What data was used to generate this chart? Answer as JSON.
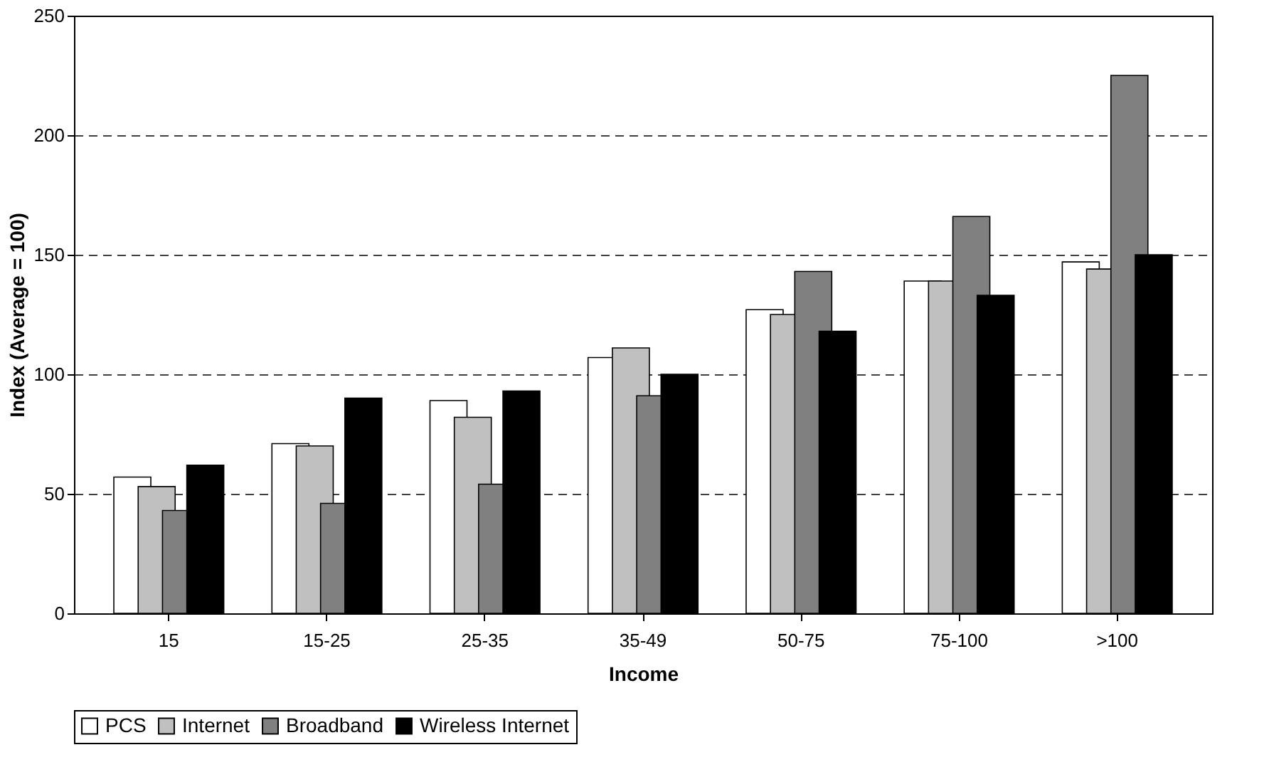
{
  "chart_data": {
    "type": "bar",
    "xlabel": "Income",
    "ylabel": "Index (Average = 100)",
    "categories": [
      "15",
      "15-25",
      "25-35",
      "35-49",
      "50-75",
      "75-100",
      ">100"
    ],
    "series": [
      {
        "name": "PCS",
        "color": "#ffffff",
        "values": [
          57,
          71,
          89,
          107,
          127,
          139,
          147
        ]
      },
      {
        "name": "Internet",
        "color": "#c0c0c0",
        "values": [
          53,
          70,
          82,
          111,
          125,
          139,
          144
        ]
      },
      {
        "name": "Broadband",
        "color": "#808080",
        "values": [
          43,
          46,
          54,
          91,
          143,
          166,
          225
        ]
      },
      {
        "name": "Wireless Internet",
        "color": "#000000",
        "values": [
          62,
          90,
          93,
          100,
          118,
          133,
          150
        ]
      }
    ],
    "ylim": [
      0,
      250
    ],
    "yticks": [
      0,
      50,
      100,
      150,
      200,
      250
    ],
    "grid": "y",
    "legend": "bottom"
  }
}
